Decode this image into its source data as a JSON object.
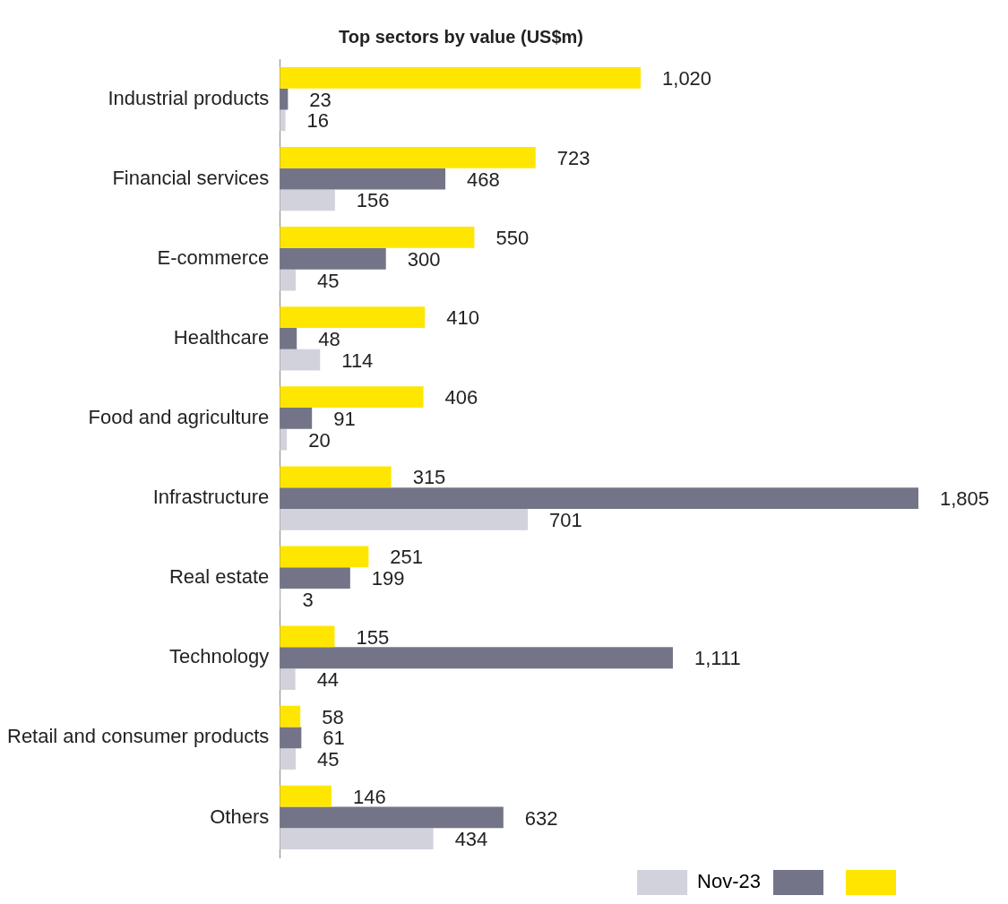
{
  "chart_data": {
    "type": "bar",
    "orientation": "horizontal",
    "title": "Top sectors by value (US$m)",
    "categories": [
      "Industrial products",
      "Financial services",
      "E-commerce",
      "Healthcare",
      "Food and agriculture",
      "Infrastructure",
      "Real estate",
      "Technology",
      "Retail and consumer products",
      "Others"
    ],
    "series": [
      {
        "color": "#ffe600",
        "values": [
          1020,
          723,
          550,
          410,
          406,
          315,
          251,
          155,
          58,
          146
        ],
        "value_labels": [
          "1,020",
          "723",
          "550",
          "410",
          "406",
          "315",
          "251",
          "155",
          "58",
          "146"
        ]
      },
      {
        "color": "#747489",
        "values": [
          23,
          468,
          300,
          48,
          91,
          1805,
          199,
          1111,
          61,
          632
        ],
        "value_labels": [
          "23",
          "468",
          "300",
          "48",
          "91",
          "1,805",
          "199",
          "1,111",
          "61",
          "632"
        ]
      },
      {
        "name": "Nov-23",
        "color": "#d2d2dc",
        "values": [
          16,
          156,
          45,
          114,
          20,
          701,
          3,
          44,
          45,
          434
        ],
        "value_labels": [
          "16",
          "156",
          "45",
          "114",
          "20",
          "701",
          "3",
          "44",
          "45",
          "434"
        ]
      }
    ],
    "grid": false,
    "legend": "bottom right"
  }
}
